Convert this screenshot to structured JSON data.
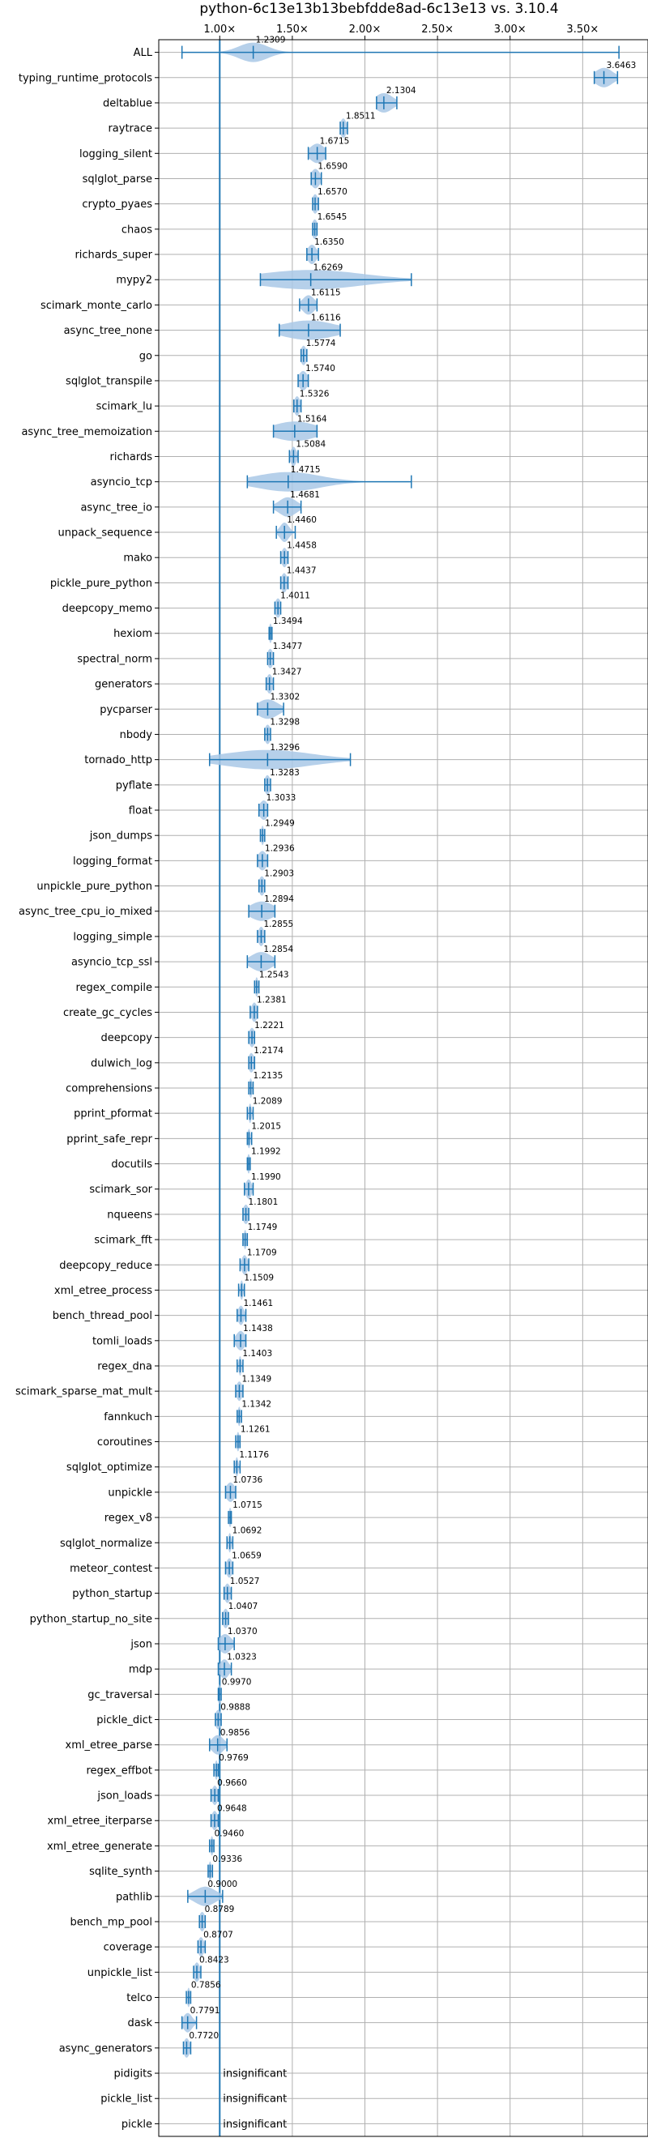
{
  "chart_data": {
    "type": "violin",
    "title": "python-6c13e13b13bebfdde8ad-6c13e13 vs. 3.10.4",
    "xlim": [
      0.58,
      3.95
    ],
    "xticks": [
      1.0,
      1.5,
      2.0,
      2.5,
      3.0,
      3.5
    ],
    "xtick_labels": [
      "1.00×",
      "1.50×",
      "2.00×",
      "2.50×",
      "3.00×",
      "3.50×"
    ],
    "reference_line": 1.0,
    "grid": true,
    "colors": {
      "violin": "#a9c8e6",
      "line": "#1f77b4",
      "grid": "#b0b0b0"
    },
    "insignificant_label": "insignificant",
    "benchmarks": [
      {
        "name": "ALL",
        "label": "1.2309",
        "mean": 1.2309,
        "min": 0.74,
        "max": 3.75,
        "spread": 0.1
      },
      {
        "name": "typing_runtime_protocols",
        "label": "3.6463",
        "mean": 3.6463,
        "min": 3.58,
        "max": 3.74,
        "spread": 0.06
      },
      {
        "name": "deltablue",
        "label": "2.1304",
        "mean": 2.1304,
        "min": 2.08,
        "max": 2.22,
        "spread": 0.06
      },
      {
        "name": "raytrace",
        "label": "1.8511",
        "mean": 1.8511,
        "min": 1.83,
        "max": 1.88,
        "spread": 0.02
      },
      {
        "name": "logging_silent",
        "label": "1.6715",
        "mean": 1.6715,
        "min": 1.61,
        "max": 1.73,
        "spread": 0.05
      },
      {
        "name": "sqlglot_parse",
        "label": "1.6590",
        "mean": 1.659,
        "min": 1.63,
        "max": 1.7,
        "spread": 0.03
      },
      {
        "name": "crypto_pyaes",
        "label": "1.6570",
        "mean": 1.657,
        "min": 1.64,
        "max": 1.68,
        "spread": 0.02
      },
      {
        "name": "chaos",
        "label": "1.6545",
        "mean": 1.6545,
        "min": 1.64,
        "max": 1.67,
        "spread": 0.02
      },
      {
        "name": "richards_super",
        "label": "1.6350",
        "mean": 1.635,
        "min": 1.6,
        "max": 1.68,
        "spread": 0.03
      },
      {
        "name": "mypy2",
        "label": "1.6269",
        "mean": 1.6269,
        "min": 1.28,
        "max": 2.32,
        "spread": 0.35
      },
      {
        "name": "scimark_monte_carlo",
        "label": "1.6115",
        "mean": 1.6115,
        "min": 1.55,
        "max": 1.67,
        "spread": 0.04
      },
      {
        "name": "async_tree_none",
        "label": "1.6116",
        "mean": 1.6116,
        "min": 1.41,
        "max": 1.83,
        "spread": 0.18
      },
      {
        "name": "go",
        "label": "1.5774",
        "mean": 1.5774,
        "min": 1.56,
        "max": 1.6,
        "spread": 0.02
      },
      {
        "name": "sqlglot_transpile",
        "label": "1.5740",
        "mean": 1.574,
        "min": 1.54,
        "max": 1.61,
        "spread": 0.03
      },
      {
        "name": "scimark_lu",
        "label": "1.5326",
        "mean": 1.5326,
        "min": 1.51,
        "max": 1.56,
        "spread": 0.02
      },
      {
        "name": "async_tree_memoization",
        "label": "1.5164",
        "mean": 1.5164,
        "min": 1.37,
        "max": 1.67,
        "spread": 0.15
      },
      {
        "name": "richards",
        "label": "1.5084",
        "mean": 1.5084,
        "min": 1.48,
        "max": 1.54,
        "spread": 0.02
      },
      {
        "name": "asyncio_tcp",
        "label": "1.4715",
        "mean": 1.4715,
        "min": 1.19,
        "max": 2.32,
        "spread": 0.22
      },
      {
        "name": "async_tree_io",
        "label": "1.4681",
        "mean": 1.4681,
        "min": 1.37,
        "max": 1.56,
        "spread": 0.06
      },
      {
        "name": "unpack_sequence",
        "label": "1.4460",
        "mean": 1.446,
        "min": 1.39,
        "max": 1.52,
        "spread": 0.03
      },
      {
        "name": "mako",
        "label": "1.4458",
        "mean": 1.4458,
        "min": 1.42,
        "max": 1.47,
        "spread": 0.02
      },
      {
        "name": "pickle_pure_python",
        "label": "1.4437",
        "mean": 1.4437,
        "min": 1.42,
        "max": 1.47,
        "spread": 0.02
      },
      {
        "name": "deepcopy_memo",
        "label": "1.4011",
        "mean": 1.4011,
        "min": 1.38,
        "max": 1.42,
        "spread": 0.02
      },
      {
        "name": "hexiom",
        "label": "1.3494",
        "mean": 1.3494,
        "min": 1.34,
        "max": 1.36,
        "spread": 0.01
      },
      {
        "name": "spectral_norm",
        "label": "1.3477",
        "mean": 1.3477,
        "min": 1.33,
        "max": 1.37,
        "spread": 0.02
      },
      {
        "name": "generators",
        "label": "1.3427",
        "mean": 1.3427,
        "min": 1.32,
        "max": 1.37,
        "spread": 0.02
      },
      {
        "name": "pycparser",
        "label": "1.3302",
        "mean": 1.3302,
        "min": 1.26,
        "max": 1.44,
        "spread": 0.07
      },
      {
        "name": "nbody",
        "label": "1.3298",
        "mean": 1.3298,
        "min": 1.31,
        "max": 1.35,
        "spread": 0.02
      },
      {
        "name": "tornado_http",
        "label": "1.3296",
        "mean": 1.3296,
        "min": 0.93,
        "max": 1.9,
        "spread": 0.3
      },
      {
        "name": "pyflate",
        "label": "1.3283",
        "mean": 1.3283,
        "min": 1.31,
        "max": 1.35,
        "spread": 0.02
      },
      {
        "name": "float",
        "label": "1.3033",
        "mean": 1.3033,
        "min": 1.27,
        "max": 1.33,
        "spread": 0.03
      },
      {
        "name": "json_dumps",
        "label": "1.2949",
        "mean": 1.2949,
        "min": 1.28,
        "max": 1.31,
        "spread": 0.01
      },
      {
        "name": "logging_format",
        "label": "1.2936",
        "mean": 1.2936,
        "min": 1.26,
        "max": 1.33,
        "spread": 0.03
      },
      {
        "name": "unpickle_pure_python",
        "label": "1.2903",
        "mean": 1.2903,
        "min": 1.27,
        "max": 1.31,
        "spread": 0.02
      },
      {
        "name": "async_tree_cpu_io_mixed",
        "label": "1.2894",
        "mean": 1.2894,
        "min": 1.2,
        "max": 1.38,
        "spread": 0.08
      },
      {
        "name": "logging_simple",
        "label": "1.2855",
        "mean": 1.2855,
        "min": 1.26,
        "max": 1.31,
        "spread": 0.02
      },
      {
        "name": "asyncio_tcp_ssl",
        "label": "1.2854",
        "mean": 1.2854,
        "min": 1.19,
        "max": 1.38,
        "spread": 0.07
      },
      {
        "name": "regex_compile",
        "label": "1.2543",
        "mean": 1.2543,
        "min": 1.24,
        "max": 1.27,
        "spread": 0.01
      },
      {
        "name": "create_gc_cycles",
        "label": "1.2381",
        "mean": 1.2381,
        "min": 1.21,
        "max": 1.26,
        "spread": 0.02
      },
      {
        "name": "deepcopy",
        "label": "1.2221",
        "mean": 1.2221,
        "min": 1.2,
        "max": 1.24,
        "spread": 0.02
      },
      {
        "name": "dulwich_log",
        "label": "1.2174",
        "mean": 1.2174,
        "min": 1.2,
        "max": 1.24,
        "spread": 0.02
      },
      {
        "name": "comprehensions",
        "label": "1.2135",
        "mean": 1.2135,
        "min": 1.2,
        "max": 1.23,
        "spread": 0.01
      },
      {
        "name": "pprint_pformat",
        "label": "1.2089",
        "mean": 1.2089,
        "min": 1.19,
        "max": 1.23,
        "spread": 0.01
      },
      {
        "name": "pprint_safe_repr",
        "label": "1.2015",
        "mean": 1.2015,
        "min": 1.19,
        "max": 1.22,
        "spread": 0.01
      },
      {
        "name": "docutils",
        "label": "1.1992",
        "mean": 1.1992,
        "min": 1.19,
        "max": 1.21,
        "spread": 0.01
      },
      {
        "name": "scimark_sor",
        "label": "1.1990",
        "mean": 1.199,
        "min": 1.17,
        "max": 1.23,
        "spread": 0.02
      },
      {
        "name": "nqueens",
        "label": "1.1801",
        "mean": 1.1801,
        "min": 1.16,
        "max": 1.2,
        "spread": 0.02
      },
      {
        "name": "scimark_fft",
        "label": "1.1749",
        "mean": 1.1749,
        "min": 1.16,
        "max": 1.19,
        "spread": 0.01
      },
      {
        "name": "deepcopy_reduce",
        "label": "1.1709",
        "mean": 1.1709,
        "min": 1.14,
        "max": 1.2,
        "spread": 0.02
      },
      {
        "name": "xml_etree_process",
        "label": "1.1509",
        "mean": 1.1509,
        "min": 1.13,
        "max": 1.17,
        "spread": 0.01
      },
      {
        "name": "bench_thread_pool",
        "label": "1.1461",
        "mean": 1.1461,
        "min": 1.12,
        "max": 1.18,
        "spread": 0.02
      },
      {
        "name": "tomli_loads",
        "label": "1.1438",
        "mean": 1.1438,
        "min": 1.1,
        "max": 1.18,
        "spread": 0.03
      },
      {
        "name": "regex_dna",
        "label": "1.1403",
        "mean": 1.1403,
        "min": 1.12,
        "max": 1.16,
        "spread": 0.01
      },
      {
        "name": "scimark_sparse_mat_mult",
        "label": "1.1349",
        "mean": 1.1349,
        "min": 1.11,
        "max": 1.16,
        "spread": 0.02
      },
      {
        "name": "fannkuch",
        "label": "1.1342",
        "mean": 1.1342,
        "min": 1.12,
        "max": 1.15,
        "spread": 0.01
      },
      {
        "name": "coroutines",
        "label": "1.1261",
        "mean": 1.1261,
        "min": 1.11,
        "max": 1.14,
        "spread": 0.01
      },
      {
        "name": "sqlglot_optimize",
        "label": "1.1176",
        "mean": 1.1176,
        "min": 1.1,
        "max": 1.14,
        "spread": 0.01
      },
      {
        "name": "unpickle",
        "label": "1.0736",
        "mean": 1.0736,
        "min": 1.04,
        "max": 1.11,
        "spread": 0.03
      },
      {
        "name": "regex_v8",
        "label": "1.0715",
        "mean": 1.0715,
        "min": 1.06,
        "max": 1.08,
        "spread": 0.01
      },
      {
        "name": "sqlglot_normalize",
        "label": "1.0692",
        "mean": 1.0692,
        "min": 1.05,
        "max": 1.09,
        "spread": 0.01
      },
      {
        "name": "meteor_contest",
        "label": "1.0659",
        "mean": 1.0659,
        "min": 1.04,
        "max": 1.09,
        "spread": 0.02
      },
      {
        "name": "python_startup",
        "label": "1.0527",
        "mean": 1.0527,
        "min": 1.03,
        "max": 1.08,
        "spread": 0.02
      },
      {
        "name": "python_startup_no_site",
        "label": "1.0407",
        "mean": 1.0407,
        "min": 1.02,
        "max": 1.06,
        "spread": 0.02
      },
      {
        "name": "json",
        "label": "1.0370",
        "mean": 1.037,
        "min": 0.99,
        "max": 1.1,
        "spread": 0.04
      },
      {
        "name": "mdp",
        "label": "1.0323",
        "mean": 1.0323,
        "min": 0.99,
        "max": 1.08,
        "spread": 0.03
      },
      {
        "name": "gc_traversal",
        "label": "0.9970",
        "mean": 0.997,
        "min": 0.99,
        "max": 1.01,
        "spread": 0.01
      },
      {
        "name": "pickle_dict",
        "label": "0.9888",
        "mean": 0.9888,
        "min": 0.97,
        "max": 1.01,
        "spread": 0.02
      },
      {
        "name": "xml_etree_parse",
        "label": "0.9856",
        "mean": 0.9856,
        "min": 0.93,
        "max": 1.05,
        "spread": 0.04
      },
      {
        "name": "regex_effbot",
        "label": "0.9769",
        "mean": 0.9769,
        "min": 0.96,
        "max": 0.99,
        "spread": 0.01
      },
      {
        "name": "json_loads",
        "label": "0.9660",
        "mean": 0.966,
        "min": 0.94,
        "max": 0.99,
        "spread": 0.02
      },
      {
        "name": "xml_etree_iterparse",
        "label": "0.9648",
        "mean": 0.9648,
        "min": 0.94,
        "max": 0.99,
        "spread": 0.02
      },
      {
        "name": "xml_etree_generate",
        "label": "0.9460",
        "mean": 0.946,
        "min": 0.93,
        "max": 0.96,
        "spread": 0.01
      },
      {
        "name": "sqlite_synth",
        "label": "0.9336",
        "mean": 0.9336,
        "min": 0.92,
        "max": 0.95,
        "spread": 0.01
      },
      {
        "name": "pathlib",
        "label": "0.9000",
        "mean": 0.9,
        "min": 0.78,
        "max": 1.02,
        "spread": 0.07
      },
      {
        "name": "bench_mp_pool",
        "label": "0.8789",
        "mean": 0.8789,
        "min": 0.86,
        "max": 0.9,
        "spread": 0.02
      },
      {
        "name": "coverage",
        "label": "0.8707",
        "mean": 0.8707,
        "min": 0.85,
        "max": 0.9,
        "spread": 0.02
      },
      {
        "name": "unpickle_list",
        "label": "0.8423",
        "mean": 0.8423,
        "min": 0.82,
        "max": 0.87,
        "spread": 0.02
      },
      {
        "name": "telco",
        "label": "0.7856",
        "mean": 0.7856,
        "min": 0.77,
        "max": 0.8,
        "spread": 0.01
      },
      {
        "name": "dask",
        "label": "0.7791",
        "mean": 0.7791,
        "min": 0.74,
        "max": 0.84,
        "spread": 0.03
      },
      {
        "name": "async_generators",
        "label": "0.7720",
        "mean": 0.772,
        "min": 0.75,
        "max": 0.8,
        "spread": 0.02
      },
      {
        "name": "pidigits",
        "label": "",
        "insignificant": true
      },
      {
        "name": "pickle_list",
        "label": "",
        "insignificant": true
      },
      {
        "name": "pickle",
        "label": "",
        "insignificant": true
      }
    ]
  }
}
